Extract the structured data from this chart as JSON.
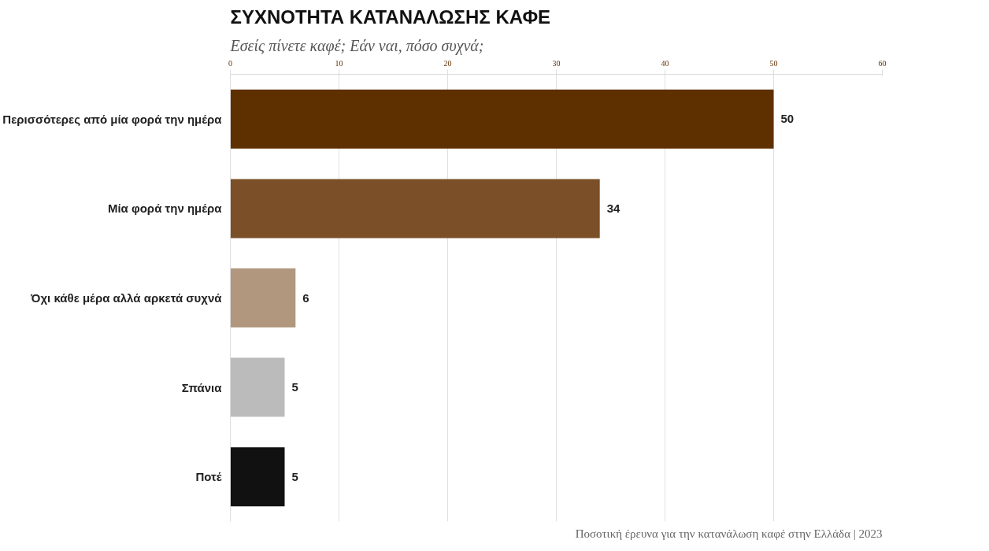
{
  "chart_data": {
    "type": "bar",
    "orientation": "horizontal",
    "title": "ΣΥΧΝΟΤΗΤΑ ΚΑΤΑΝΑΛΩΣΗΣ ΚΑΦΕ",
    "subtitle": "Εσείς πίνετε καφέ; Εάν ναι, πόσο συχνά;",
    "categories": [
      "Περισσότερες από μία φορά την ημέρα",
      "Μία φορά την ημέρα",
      "Όχι κάθε μέρα αλλά αρκετά συχνά",
      "Σπάνια",
      "Ποτέ"
    ],
    "values": [
      50,
      34,
      6,
      5,
      5
    ],
    "colors": [
      "#5e3000",
      "#7b5028",
      "#b0977e",
      "#bbbbbb",
      "#111111"
    ],
    "xlim": [
      0,
      60
    ],
    "xticks": [
      0,
      10,
      20,
      30,
      40,
      50,
      60
    ],
    "grid": "x",
    "data_labels": true,
    "annotations": [
      "Ποσοτική έρευνα για την κατανάλωση καφέ στην Ελλάδα | 2023"
    ]
  }
}
